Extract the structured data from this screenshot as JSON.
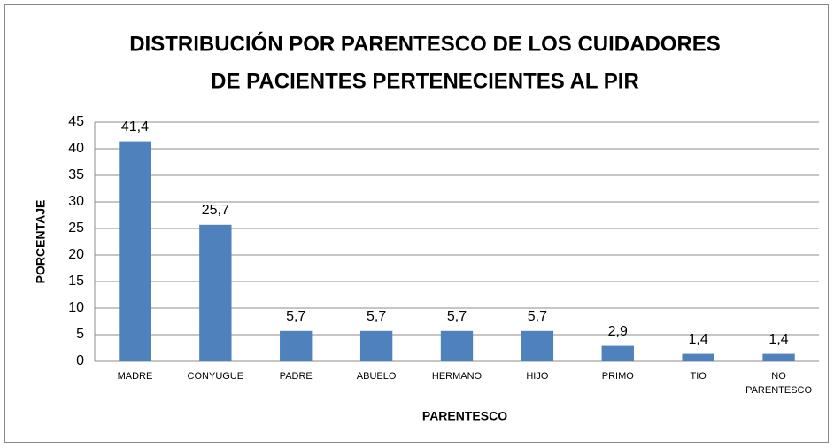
{
  "chart_data": {
    "type": "bar",
    "title": [
      "DISTRIBUCIÓN POR PARENTESCO DE LOS CUIDADORES",
      "DE PACIENTES PERTENECIENTES AL PIR"
    ],
    "x_label": "PARENTESCO",
    "y_label": "PORCENTAJE",
    "categories": [
      "MADRE",
      "CONYUGUE",
      "PADRE",
      "ABUELO",
      "HERMANO",
      "HIJO",
      "PRIMO",
      "TIO",
      "NO PARENTESCO"
    ],
    "values": [
      41.4,
      25.7,
      5.7,
      5.7,
      5.7,
      5.7,
      2.9,
      1.4,
      1.4
    ],
    "value_labels": [
      "41,4",
      "25,7",
      "5,7",
      "5,7",
      "5,7",
      "5,7",
      "2,9",
      "1,4",
      "1,4"
    ],
    "color": "#4f81bd",
    "ylim": [
      0,
      45
    ],
    "yticks": [
      0,
      5,
      10,
      15,
      20,
      25,
      30,
      35,
      40,
      45
    ],
    "grid": true
  }
}
